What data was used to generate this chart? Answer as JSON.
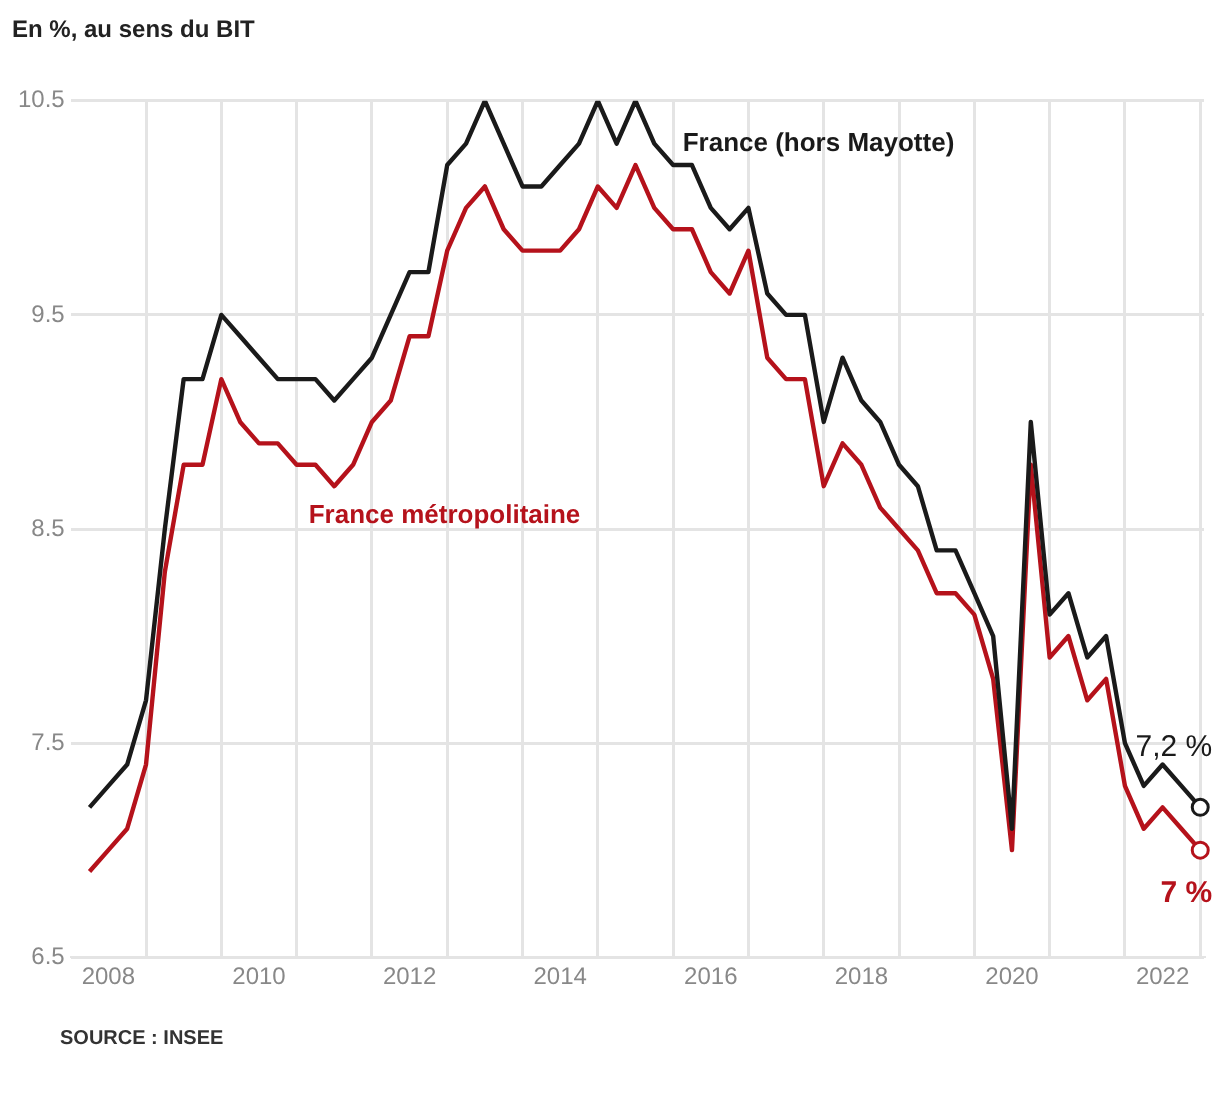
{
  "chart_data": {
    "type": "line",
    "title": "En %, au sens du BIT",
    "x": [
      2008.25,
      2008.5,
      2008.75,
      2009,
      2009.25,
      2009.5,
      2009.75,
      2010,
      2010.25,
      2010.5,
      2010.75,
      2011,
      2011.25,
      2011.5,
      2011.75,
      2012,
      2012.25,
      2012.5,
      2012.75,
      2013,
      2013.25,
      2013.5,
      2013.75,
      2014,
      2014.25,
      2014.5,
      2014.75,
      2015,
      2015.25,
      2015.5,
      2015.75,
      2016,
      2016.25,
      2016.5,
      2016.75,
      2017,
      2017.25,
      2017.5,
      2017.75,
      2018,
      2018.25,
      2018.5,
      2018.75,
      2019,
      2019.25,
      2019.5,
      2019.75,
      2020,
      2020.25,
      2020.5,
      2020.75,
      2021,
      2021.25,
      2021.5,
      2021.75,
      2022,
      2022.25,
      2022.5,
      2022.75,
      2023
    ],
    "series": [
      {
        "name": "France (hors Mayotte)",
        "color": "#1a1a1a",
        "values": [
          7.2,
          7.3,
          7.4,
          7.7,
          8.5,
          9.2,
          9.2,
          9.5,
          9.4,
          9.3,
          9.2,
          9.2,
          9.2,
          9.1,
          9.2,
          9.3,
          9.5,
          9.7,
          9.7,
          10.2,
          10.3,
          10.5,
          10.3,
          10.1,
          10.1,
          10.2,
          10.3,
          10.5,
          10.3,
          10.5,
          10.3,
          10.2,
          10.2,
          10.0,
          9.9,
          10.0,
          9.6,
          9.5,
          9.5,
          9.0,
          9.3,
          9.1,
          9.0,
          8.8,
          8.7,
          8.4,
          8.4,
          8.2,
          8.0,
          7.1,
          9.0,
          8.1,
          8.2,
          7.9,
          8.0,
          7.5,
          7.3,
          7.4,
          7.3,
          7.2
        ]
      },
      {
        "name": "France métropolitaine",
        "color": "#b5121b",
        "values": [
          6.9,
          7.0,
          7.1,
          7.4,
          8.3,
          8.8,
          8.8,
          9.2,
          9.0,
          8.9,
          8.9,
          8.8,
          8.8,
          8.7,
          8.8,
          9.0,
          9.1,
          9.4,
          9.4,
          9.8,
          10.0,
          10.1,
          9.9,
          9.8,
          9.8,
          9.8,
          9.9,
          10.1,
          10.0,
          10.2,
          10.0,
          9.9,
          9.9,
          9.7,
          9.6,
          9.8,
          9.3,
          9.2,
          9.2,
          8.7,
          8.9,
          8.8,
          8.6,
          8.5,
          8.4,
          8.2,
          8.2,
          8.1,
          7.8,
          7.0,
          8.8,
          7.9,
          8.0,
          7.7,
          7.8,
          7.3,
          7.1,
          7.2,
          7.1,
          7.0
        ]
      }
    ],
    "xlim": [
      2008,
      2023.05
    ],
    "xticks": [
      {
        "value": 2008.5,
        "label": "2008"
      },
      {
        "value": 2009,
        "label": null
      },
      {
        "value": 2010,
        "label": null
      },
      {
        "value": 2010.5,
        "label": "2010"
      },
      {
        "value": 2011,
        "label": null
      },
      {
        "value": 2012,
        "label": null
      },
      {
        "value": 2012.5,
        "label": "2012"
      },
      {
        "value": 2013,
        "label": null
      },
      {
        "value": 2014,
        "label": null
      },
      {
        "value": 2014.5,
        "label": "2014"
      },
      {
        "value": 2015,
        "label": null
      },
      {
        "value": 2016,
        "label": null
      },
      {
        "value": 2016.5,
        "label": "2016"
      },
      {
        "value": 2017,
        "label": null
      },
      {
        "value": 2018,
        "label": null
      },
      {
        "value": 2018.5,
        "label": "2018"
      },
      {
        "value": 2019,
        "label": null
      },
      {
        "value": 2020,
        "label": null
      },
      {
        "value": 2020.5,
        "label": "2020"
      },
      {
        "value": 2021,
        "label": null
      },
      {
        "value": 2022,
        "label": null
      },
      {
        "value": 2022.5,
        "label": "2022"
      },
      {
        "value": 2023,
        "label": null
      }
    ],
    "ylim": [
      6.5,
      10.5
    ],
    "yticks": [
      6.5,
      7.5,
      8.5,
      9.5,
      10.5
    ],
    "grid": true,
    "legend": false,
    "line_style": "solid",
    "annotations": [
      {
        "text": "7,2 %",
        "x": 2023,
        "y": 7.2
      },
      {
        "text": "7 %",
        "x": 2023,
        "y": 7.0
      },
      "SOURCE : INSEE"
    ]
  }
}
